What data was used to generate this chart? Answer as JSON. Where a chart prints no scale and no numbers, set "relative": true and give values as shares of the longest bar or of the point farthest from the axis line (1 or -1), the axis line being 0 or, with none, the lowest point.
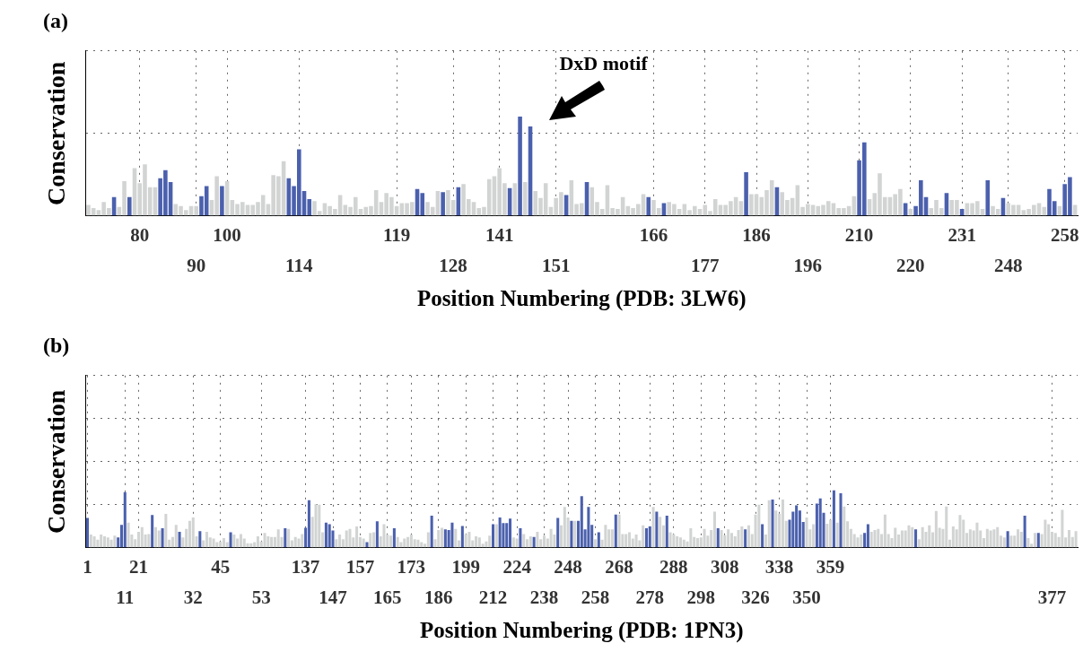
{
  "chart_data": [
    {
      "type": "bar",
      "title": "(a)",
      "xlabel": "Position Numbering (PDB: 3LW6)",
      "ylabel": "Conservation",
      "relative": true,
      "grid": true,
      "annotations": [
        "DxD motif"
      ],
      "categories": [
        null,
        null,
        null,
        null,
        null,
        null,
        null,
        null,
        null,
        null,
        "80",
        null,
        null,
        null,
        null,
        null,
        null,
        null,
        null,
        null,
        null,
        "90",
        null,
        null,
        null,
        null,
        null,
        "100",
        null,
        null,
        null,
        null,
        null,
        null,
        null,
        null,
        null,
        null,
        null,
        null,
        null,
        "114",
        null,
        null,
        null,
        null,
        null,
        null,
        null,
        null,
        null,
        null,
        null,
        null,
        null,
        null,
        null,
        null,
        null,
        null,
        "119",
        null,
        null,
        null,
        null,
        null,
        null,
        null,
        null,
        null,
        null,
        "128",
        null,
        null,
        null,
        null,
        null,
        null,
        null,
        null,
        "141",
        null,
        null,
        null,
        null,
        null,
        null,
        null,
        null,
        null,
        null,
        "151",
        null,
        null,
        null,
        null,
        null,
        null,
        null,
        null,
        null,
        null,
        null,
        null,
        null,
        null,
        null,
        null,
        null,
        null,
        "166",
        null,
        null,
        null,
        null,
        null,
        null,
        null,
        null,
        null,
        "177",
        null,
        null,
        null,
        null,
        null,
        null,
        null,
        null,
        null,
        "186",
        null,
        null,
        null,
        null,
        null,
        null,
        null,
        null,
        null,
        "196",
        null,
        null,
        null,
        null,
        null,
        null,
        null,
        null,
        null,
        "210",
        null,
        null,
        null,
        null,
        null,
        null,
        null,
        null,
        null,
        "220",
        null,
        null,
        null,
        null,
        null,
        null,
        null,
        null,
        null,
        "231",
        null,
        null,
        null,
        null,
        null,
        null,
        null,
        null,
        "248",
        null,
        null,
        null,
        null,
        null,
        null,
        null,
        null,
        null,
        null,
        "258",
        null,
        null
      ],
      "values": [
        0.11,
        0.08,
        0.06,
        0.14,
        0.08,
        0.19,
        0.09,
        0.35,
        0.19,
        0.48,
        0.33,
        0.52,
        0.29,
        0.29,
        0.38,
        0.46,
        0.34,
        0.12,
        0.1,
        0.06,
        0.1,
        0.1,
        0.2,
        0.3,
        0.16,
        0.4,
        0.3,
        0.35,
        0.16,
        0.12,
        0.14,
        0.11,
        0.11,
        0.14,
        0.21,
        0.12,
        0.41,
        0.4,
        0.55,
        0.38,
        0.3,
        0.67,
        0.25,
        0.17,
        0.15,
        0.05,
        0.13,
        0.1,
        0.07,
        0.21,
        0.11,
        0.09,
        0.19,
        0.07,
        0.09,
        0.1,
        0.26,
        0.14,
        0.23,
        0.19,
        0.1,
        0.13,
        0.13,
        0.14,
        0.27,
        0.23,
        0.14,
        0.09,
        0.25,
        0.24,
        0.26,
        0.16,
        0.29,
        0.32,
        0.17,
        0.14,
        0.08,
        0.09,
        0.37,
        0.4,
        0.48,
        0.33,
        0.28,
        0.33,
        1,
        0.34,
        0.9,
        0.25,
        0.18,
        0.33,
        0.09,
        0.18,
        0.24,
        0.21,
        0.36,
        0.12,
        0.13,
        0.34,
        0.29,
        0.14,
        0.07,
        0.31,
        0.08,
        0.07,
        0.19,
        0.1,
        0.08,
        0.12,
        0.22,
        0.19,
        0.16,
        0.08,
        0.13,
        0.14,
        0.12,
        0.07,
        0.12,
        0.06,
        0.1,
        0.07,
        0.11,
        0.05,
        0.17,
        0.11,
        0.11,
        0.15,
        0.19,
        0.15,
        0.44,
        0.22,
        0.22,
        0.19,
        0.26,
        0.36,
        0.29,
        0.24,
        0.16,
        0.18,
        0.31,
        0.09,
        0.12,
        0.11,
        0.1,
        0.11,
        0.15,
        0.13,
        0.08,
        0.08,
        0.1,
        0.2,
        0.56,
        0.74,
        0.17,
        0.23,
        0.43,
        0.19,
        0.19,
        0.22,
        0.27,
        0.13,
        0.07,
        0.1,
        0.36,
        0.19,
        0.08,
        0.16,
        0.08,
        0.23,
        0.16,
        0.16,
        0.07,
        0.13,
        0.13,
        0.15,
        0.07,
        0.36,
        0.1,
        0.07,
        0.18,
        0.13,
        0.11,
        0.11,
        0.06,
        0.07,
        0.11,
        0.13,
        0.09,
        0.27,
        0.15,
        0.1,
        0.32,
        0.39,
        0.11
      ],
      "colors": [
        "#d2d4d4",
        "#d2d4d4",
        "#d2d4d4",
        "#d2d4d4",
        "#d2d4d4",
        "#4b60ad",
        "#d2d4d4",
        "#d2d4d4",
        "#4b60ad",
        "#d2d4d4",
        "#d2d4d4",
        "#d2d4d4",
        "#d2d4d4",
        "#d2d4d4",
        "#4b60ad",
        "#4b60ad",
        "#4b60ad",
        "#d2d4d4",
        "#d2d4d4",
        "#d2d4d4",
        "#d2d4d4",
        "#d2d4d4",
        "#4b60ad",
        "#4b60ad",
        "#d2d4d4",
        "#d2d4d4",
        "#4b60ad",
        "#d2d4d4",
        "#d2d4d4",
        "#d2d4d4",
        "#d2d4d4",
        "#d2d4d4",
        "#d2d4d4",
        "#d2d4d4",
        "#d2d4d4",
        "#d2d4d4",
        "#d2d4d4",
        "#d2d4d4",
        "#d2d4d4",
        "#4b60ad",
        "#4b60ad",
        "#4b60ad",
        "#4b60ad",
        "#4b60ad",
        "#d2d4d4",
        "#d2d4d4",
        "#d2d4d4",
        "#d2d4d4",
        "#d2d4d4",
        "#d2d4d4",
        "#d2d4d4",
        "#d2d4d4",
        "#d2d4d4",
        "#d2d4d4",
        "#d2d4d4",
        "#d2d4d4",
        "#d2d4d4",
        "#d2d4d4",
        "#d2d4d4",
        "#d2d4d4",
        "#d2d4d4",
        "#d2d4d4",
        "#d2d4d4",
        "#d2d4d4",
        "#4b60ad",
        "#4b60ad",
        "#d2d4d4",
        "#d2d4d4",
        "#d2d4d4",
        "#4b60ad",
        "#d2d4d4",
        "#d2d4d4",
        "#4b60ad",
        "#d2d4d4",
        "#d2d4d4",
        "#d2d4d4",
        "#d2d4d4",
        "#d2d4d4",
        "#d2d4d4",
        "#d2d4d4",
        "#d2d4d4",
        "#d2d4d4",
        "#4b60ad",
        "#d2d4d4",
        "#4b60ad",
        "#d2d4d4",
        "#4b60ad",
        "#d2d4d4",
        "#d2d4d4",
        "#d2d4d4",
        "#d2d4d4",
        "#d2d4d4",
        "#d2d4d4",
        "#4b60ad",
        "#d2d4d4",
        "#d2d4d4",
        "#d2d4d4",
        "#4b60ad",
        "#d2d4d4",
        "#d2d4d4",
        "#d2d4d4",
        "#d2d4d4",
        "#d2d4d4",
        "#d2d4d4",
        "#d2d4d4",
        "#d2d4d4",
        "#d2d4d4",
        "#d2d4d4",
        "#d2d4d4",
        "#4b60ad",
        "#d2d4d4",
        "#d2d4d4",
        "#4b60ad",
        "#d2d4d4",
        "#d2d4d4",
        "#d2d4d4",
        "#d2d4d4",
        "#d2d4d4",
        "#d2d4d4",
        "#d2d4d4",
        "#d2d4d4",
        "#d2d4d4",
        "#d2d4d4",
        "#d2d4d4",
        "#d2d4d4",
        "#d2d4d4",
        "#d2d4d4",
        "#d2d4d4",
        "#4b60ad",
        "#d2d4d4",
        "#d2d4d4",
        "#d2d4d4",
        "#d2d4d4",
        "#d2d4d4",
        "#4b60ad",
        "#d2d4d4",
        "#d2d4d4",
        "#d2d4d4",
        "#d2d4d4",
        "#d2d4d4",
        "#d2d4d4",
        "#d2d4d4",
        "#d2d4d4",
        "#d2d4d4",
        "#d2d4d4",
        "#d2d4d4",
        "#d2d4d4",
        "#d2d4d4",
        "#d2d4d4",
        "#d2d4d4",
        "#4b60ad",
        "#4b60ad",
        "#d2d4d4",
        "#d2d4d4",
        "#d2d4d4",
        "#d2d4d4",
        "#d2d4d4",
        "#d2d4d4",
        "#d2d4d4",
        "#4b60ad",
        "#d2d4d4",
        "#4b60ad",
        "#4b60ad",
        "#4b60ad",
        "#d2d4d4",
        "#d2d4d4",
        "#d2d4d4",
        "#4b60ad",
        "#d2d4d4",
        "#d2d4d4",
        "#4b60ad",
        "#d2d4d4",
        "#d2d4d4",
        "#d2d4d4",
        "#d2d4d4",
        "#4b60ad",
        "#d2d4d4",
        "#d2d4d4",
        "#4b60ad",
        "#d2d4d4",
        "#d2d4d4",
        "#d2d4d4",
        "#d2d4d4",
        "#d2d4d4",
        "#d2d4d4",
        "#d2d4d4",
        "#d2d4d4",
        "#4b60ad",
        "#4b60ad",
        "#d2d4d4",
        "#4b60ad",
        "#4b60ad",
        "#d2d4d4"
      ]
    },
    {
      "type": "bar",
      "title": "(b)",
      "xlabel": "Position Numbering (PDB: 1PN3)",
      "ylabel": "Conservation",
      "relative": true,
      "grid": true,
      "categories": [
        "1",
        null,
        null,
        null,
        null,
        null,
        null,
        null,
        null,
        null,
        null,
        "11",
        null,
        null,
        null,
        "21",
        null,
        null,
        null,
        null,
        null,
        null,
        null,
        null,
        null,
        null,
        null,
        null,
        null,
        null,
        null,
        "32",
        null,
        null,
        null,
        null,
        null,
        null,
        null,
        "45",
        null,
        null,
        null,
        null,
        null,
        null,
        null,
        null,
        null,
        null,
        null,
        "53",
        null,
        null,
        null,
        null,
        null,
        null,
        null,
        null,
        null,
        null,
        null,
        null,
        "137",
        null,
        null,
        null,
        null,
        null,
        null,
        null,
        "147",
        null,
        null,
        null,
        null,
        null,
        null,
        null,
        "157",
        null,
        null,
        null,
        null,
        null,
        null,
        null,
        "165",
        null,
        null,
        null,
        null,
        null,
        null,
        "173",
        null,
        null,
        null,
        null,
        null,
        null,
        null,
        "186",
        null,
        null,
        null,
        null,
        null,
        null,
        null,
        "199",
        null,
        null,
        null,
        null,
        null,
        null,
        null,
        "212",
        null,
        null,
        null,
        null,
        null,
        null,
        "224",
        null,
        null,
        null,
        null,
        null,
        null,
        null,
        "238",
        null,
        null,
        null,
        null,
        null,
        null,
        "248",
        null,
        null,
        null,
        null,
        null,
        null,
        null,
        "258",
        null,
        null,
        null,
        null,
        null,
        null,
        "268",
        null,
        null,
        null,
        null,
        null,
        null,
        null,
        null,
        "278",
        null,
        null,
        null,
        null,
        null,
        null,
        "288",
        null,
        null,
        null,
        null,
        null,
        null,
        null,
        "298",
        null,
        null,
        null,
        null,
        null,
        null,
        "308",
        null,
        null,
        null,
        null,
        null,
        null,
        null,
        null,
        "326",
        null,
        null,
        null,
        null,
        null,
        null,
        "338",
        null,
        null,
        null,
        null,
        null,
        null,
        null,
        "350",
        null,
        null,
        null,
        null,
        null,
        null,
        "359",
        null,
        null,
        null,
        null,
        null,
        null,
        null,
        null,
        null,
        null,
        null,
        null,
        null,
        null,
        null,
        null,
        null,
        null,
        null,
        null,
        null,
        null,
        null,
        null,
        null,
        null,
        null,
        null,
        null,
        null,
        null,
        null,
        null,
        null,
        null,
        null,
        null,
        null,
        null,
        null,
        null,
        null,
        null,
        null,
        null,
        null,
        null,
        null,
        null,
        null,
        null,
        null,
        null,
        null,
        null,
        null,
        null,
        null,
        null,
        null,
        null,
        null,
        null,
        null,
        "377",
        null,
        null,
        null,
        null,
        null,
        null,
        null
      ],
      "values": [
        0.52,
        0.23,
        0.2,
        0.14,
        0.23,
        0.2,
        0.18,
        0.14,
        0.21,
        0.18,
        0.4,
        0.97,
        0.44,
        0.23,
        0.15,
        0.28,
        0.36,
        0.23,
        0.24,
        0.57,
        0.36,
        0.3,
        0.34,
        0.59,
        0.14,
        0.19,
        0.4,
        0.28,
        0.18,
        0.33,
        0.47,
        0.53,
        0.2,
        0.29,
        0.13,
        0.28,
        0.18,
        0.16,
        0.1,
        0.11,
        0.17,
        0.1,
        0.27,
        0.23,
        0.16,
        0.24,
        0.16,
        0.08,
        0.08,
        0.1,
        0.2,
        0.11,
        0.26,
        0.2,
        0.19,
        0.19,
        0.32,
        0.19,
        0.34,
        0.33,
        0.13,
        0.19,
        0.16,
        0.24,
        0.35,
        0.83,
        0.54,
        0.76,
        0.75,
        0.27,
        0.44,
        0.41,
        0.3,
        0.15,
        0.23,
        0.15,
        0.3,
        0.33,
        0.18,
        0.37,
        0.19,
        0.16,
        0.1,
        0.26,
        0.27,
        0.46,
        0.2,
        0.41,
        0.23,
        0.21,
        0.34,
        0.19,
        0.1,
        0.16,
        0.19,
        0.23,
        0.15,
        0.14,
        0.1,
        0.07,
        0.27,
        0.56,
        0.15,
        0.31,
        0.35,
        0.32,
        0.31,
        0.44,
        0.33,
        0.13,
        0.38,
        0.24,
        0.28,
        0.13,
        0.2,
        0.18,
        0.07,
        0.11,
        0.21,
        0.41,
        0.41,
        0.53,
        0.43,
        0.43,
        0.51,
        0.18,
        0.16,
        0.34,
        0.24,
        0.15,
        0.2,
        0.19,
        0.28,
        0.15,
        0.21,
        0.16,
        0.33,
        0.23,
        0.52,
        0.39,
        0.71,
        0.53,
        0.47,
        0.47,
        0.47,
        0.9,
        0.32,
        0.71,
        0.4,
        0.15,
        0.27,
        0.14,
        0.4,
        0.32,
        0.32,
        0.58,
        0.58,
        0.24,
        0.24,
        0.27,
        0.16,
        0.23,
        0.13,
        0.39,
        0.34,
        0.37,
        0.71,
        0.63,
        0.54,
        0.39,
        0.56,
        0.27,
        0.24,
        0.2,
        0.18,
        0.14,
        0.11,
        0.34,
        0.19,
        0.17,
        0.18,
        0.33,
        0.21,
        0.31,
        0.63,
        0.34,
        0.31,
        0.22,
        0.32,
        0.26,
        0.2,
        0.31,
        0.37,
        0.32,
        0.39,
        0.24,
        0.58,
        0.75,
        0.41,
        0.23,
        0.83,
        0.84,
        0.65,
        0.59,
        0.84,
        0.47,
        0.49,
        0.63,
        0.74,
        0.65,
        0.45,
        0.53,
        0.32,
        0.41,
        0.77,
        0.86,
        0.61,
        0.42,
        0.49,
        1,
        0.44,
        0.95,
        0.72,
        0.46,
        0.33,
        0.24,
        0.18,
        0.23,
        0.26,
        0.41,
        0.28,
        0.31,
        0.33,
        0.24,
        0.58,
        0.24,
        0.17,
        0.35,
        0.23,
        0.3,
        0.3,
        0.39,
        0.36,
        0.32,
        0.15,
        0.36,
        0.28,
        0.39,
        0.27,
        0.64,
        0.35,
        0.33,
        0.72,
        0.14,
        0.37,
        0.32,
        0.57,
        0.49,
        0.26,
        0.32,
        0.3,
        0.44,
        0.3,
        0.17,
        0.33,
        0.3,
        0.32,
        0.36,
        0.21,
        0.18,
        0.29,
        0.21,
        0.21,
        0.32,
        0.28,
        0.56,
        0.17,
        0.07,
        0.26,
        0.26,
        0.24,
        0.49,
        0.41,
        0.28,
        0.26,
        0.19,
        0.66,
        0.18,
        0.31,
        0.19,
        0.29
      ],
      "colors": [
        "#4b60ad",
        "#d2d4d4",
        "#d2d4d4",
        "#d2d4d4",
        "#d2d4d4",
        "#d2d4d4",
        "#d2d4d4",
        "#d2d4d4",
        "#d2d4d4",
        "#4b60ad",
        "#4b60ad",
        "#4b60ad",
        "#d2d4d4",
        "#d2d4d4",
        "#d2d4d4",
        "#d2d4d4",
        "#d2d4d4",
        "#d2d4d4",
        "#d2d4d4",
        "#4b60ad",
        "#d2d4d4",
        "#d2d4d4",
        "#4b60ad",
        "#d2d4d4",
        "#d2d4d4",
        "#d2d4d4",
        "#d2d4d4",
        "#4b60ad",
        "#d2d4d4",
        "#d2d4d4",
        "#d2d4d4",
        "#d2d4d4",
        "#d2d4d4",
        "#4b60ad",
        "#d2d4d4",
        "#d2d4d4",
        "#d2d4d4",
        "#d2d4d4",
        "#d2d4d4",
        "#d2d4d4",
        "#d2d4d4",
        "#d2d4d4",
        "#4b60ad",
        "#d2d4d4",
        "#d2d4d4",
        "#d2d4d4",
        "#d2d4d4",
        "#d2d4d4",
        "#d2d4d4",
        "#d2d4d4",
        "#d2d4d4",
        "#d2d4d4",
        "#d2d4d4",
        "#d2d4d4",
        "#d2d4d4",
        "#d2d4d4",
        "#d2d4d4",
        "#d2d4d4",
        "#4b60ad",
        "#d2d4d4",
        "#d2d4d4",
        "#d2d4d4",
        "#d2d4d4",
        "#d2d4d4",
        "#4b60ad",
        "#4b60ad",
        "#d2d4d4",
        "#d2d4d4",
        "#d2d4d4",
        "#d2d4d4",
        "#4b60ad",
        "#4b60ad",
        "#4b60ad",
        "#d2d4d4",
        "#d2d4d4",
        "#d2d4d4",
        "#d2d4d4",
        "#d2d4d4",
        "#d2d4d4",
        "#d2d4d4",
        "#d2d4d4",
        "#d2d4d4",
        "#4b60ad",
        "#d2d4d4",
        "#d2d4d4",
        "#4b60ad",
        "#d2d4d4",
        "#d2d4d4",
        "#d2d4d4",
        "#d2d4d4",
        "#4b60ad",
        "#d2d4d4",
        "#d2d4d4",
        "#d2d4d4",
        "#d2d4d4",
        "#d2d4d4",
        "#d2d4d4",
        "#d2d4d4",
        "#d2d4d4",
        "#d2d4d4",
        "#d2d4d4",
        "#4b60ad",
        "#d2d4d4",
        "#d2d4d4",
        "#d2d4d4",
        "#4b60ad",
        "#4b60ad",
        "#4b60ad",
        "#d2d4d4",
        "#d2d4d4",
        "#4b60ad",
        "#d2d4d4",
        "#d2d4d4",
        "#d2d4d4",
        "#d2d4d4",
        "#d2d4d4",
        "#d2d4d4",
        "#d2d4d4",
        "#d2d4d4",
        "#4b60ad",
        "#d2d4d4",
        "#4b60ad",
        "#4b60ad",
        "#4b60ad",
        "#4b60ad",
        "#d2d4d4",
        "#d2d4d4",
        "#4b60ad",
        "#d2d4d4",
        "#d2d4d4",
        "#d2d4d4",
        "#4b60ad",
        "#d2d4d4",
        "#d2d4d4",
        "#d2d4d4",
        "#d2d4d4",
        "#d2d4d4",
        "#d2d4d4",
        "#4b60ad",
        "#d2d4d4",
        "#d2d4d4",
        "#d2d4d4",
        "#4b60ad",
        "#d2d4d4",
        "#4b60ad",
        "#4b60ad",
        "#4b60ad",
        "#4b60ad",
        "#4b60ad",
        "#d2d4d4",
        "#4b60ad",
        "#d2d4d4",
        "#d2d4d4",
        "#d2d4d4",
        "#d2d4d4",
        "#4b60ad",
        "#d2d4d4",
        "#d2d4d4",
        "#d2d4d4",
        "#d2d4d4",
        "#d2d4d4",
        "#d2d4d4",
        "#d2d4d4",
        "#d2d4d4",
        "#4b60ad",
        "#4b60ad",
        "#d2d4d4",
        "#4b60ad",
        "#d2d4d4",
        "#d2d4d4",
        "#4b60ad",
        "#d2d4d4",
        "#d2d4d4",
        "#d2d4d4",
        "#d2d4d4",
        "#d2d4d4",
        "#d2d4d4",
        "#d2d4d4",
        "#d2d4d4",
        "#d2d4d4",
        "#d2d4d4",
        "#d2d4d4",
        "#d2d4d4",
        "#d2d4d4",
        "#d2d4d4",
        "#4b60ad",
        "#d2d4d4",
        "#d2d4d4",
        "#d2d4d4",
        "#d2d4d4",
        "#d2d4d4",
        "#d2d4d4",
        "#d2d4d4",
        "#4b60ad",
        "#d2d4d4",
        "#d2d4d4",
        "#d2d4d4",
        "#d2d4d4",
        "#4b60ad",
        "#d2d4d4",
        "#d2d4d4",
        "#4b60ad",
        "#d2d4d4",
        "#d2d4d4",
        "#d2d4d4",
        "#d2d4d4",
        "#4b60ad",
        "#4b60ad",
        "#4b60ad",
        "#4b60ad",
        "#4b60ad",
        "#d2d4d4",
        "#d2d4d4",
        "#d2d4d4",
        "#4b60ad",
        "#4b60ad",
        "#4b60ad",
        "#d2d4d4",
        "#d2d4d4",
        "#4b60ad",
        "#d2d4d4",
        "#4b60ad",
        "#d2d4d4",
        "#d2d4d4",
        "#d2d4d4",
        "#d2d4d4",
        "#d2d4d4",
        "#d2d4d4",
        "#4b60ad",
        "#4b60ad",
        "#d2d4d4",
        "#d2d4d4",
        "#d2d4d4",
        "#d2d4d4",
        "#d2d4d4",
        "#d2d4d4",
        "#d2d4d4",
        "#d2d4d4",
        "#d2d4d4",
        "#d2d4d4",
        "#d2d4d4",
        "#d2d4d4",
        "#d2d4d4",
        "#4b60ad",
        "#d2d4d4",
        "#d2d4d4",
        "#d2d4d4",
        "#d2d4d4",
        "#d2d4d4",
        "#d2d4d4",
        "#d2d4d4",
        "#d2d4d4",
        "#d2d4d4",
        "#d2d4d4",
        "#d2d4d4",
        "#d2d4d4",
        "#d2d4d4",
        "#d2d4d4",
        "#d2d4d4",
        "#d2d4d4",
        "#d2d4d4",
        "#d2d4d4",
        "#d2d4d4",
        "#d2d4d4",
        "#d2d4d4",
        "#d2d4d4",
        "#d2d4d4",
        "#d2d4d4",
        "#d2d4d4",
        "#d2d4d4",
        "#4b60ad",
        "#d2d4d4",
        "#d2d4d4",
        "#d2d4d4",
        "#d2d4d4",
        "#4b60ad",
        "#d2d4d4",
        "#d2d4d4",
        "#d2d4d4",
        "#4b60ad",
        "#d2d4d4",
        "#d2d4d4",
        "#d2d4d4",
        "#d2d4d4",
        "#d2d4d4",
        "#d2d4d4",
        "#d2d4d4",
        "#d2d4d4",
        "#d2d4d4",
        "#d2d4d4",
        "#d2d4d4"
      ]
    }
  ]
}
